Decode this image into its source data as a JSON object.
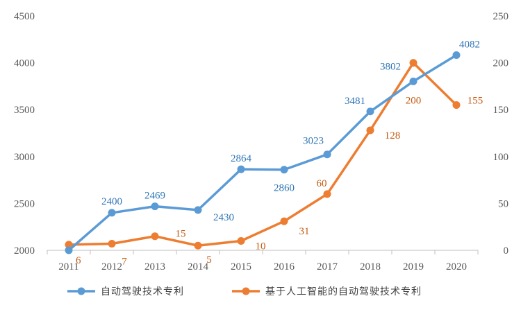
{
  "chart_data": {
    "type": "line",
    "categories": [
      "2011",
      "2012",
      "2013",
      "2014",
      "2015",
      "2016",
      "2017",
      "2018",
      "2019",
      "2020"
    ],
    "series": [
      {
        "name": "自动驾驶技术专利",
        "axis": "left",
        "color": "#5B9BD5",
        "label_color": "#2E75B6",
        "values": [
          2000,
          2400,
          2469,
          2430,
          2864,
          2860,
          3023,
          3481,
          3802,
          4082
        ],
        "labels": [
          "",
          "2400",
          "2469",
          "2430",
          "2864",
          "2860",
          "3023",
          "3481",
          "3802",
          "4082"
        ]
      },
      {
        "name": "基于人工智能的自动驾驶技术专利",
        "axis": "right",
        "color": "#ED7D31",
        "label_color": "#C55A11",
        "values": [
          6,
          7,
          15,
          5,
          10,
          31,
          60,
          128,
          200,
          155
        ],
        "labels": [
          "6",
          "7",
          "15",
          "5",
          "10",
          "31",
          "60",
          "128",
          "200",
          "155"
        ]
      }
    ],
    "y_left": {
      "min": 2000,
      "max": 4500,
      "ticks": [
        "2000",
        "2500",
        "3000",
        "3500",
        "4000",
        "4500"
      ]
    },
    "y_right": {
      "min": 0,
      "max": 250,
      "ticks": [
        "0",
        "50",
        "100",
        "150",
        "200",
        "250"
      ]
    },
    "grid": false,
    "legend_position": "bottom",
    "title": "",
    "xlabel": "",
    "ylabel": ""
  }
}
